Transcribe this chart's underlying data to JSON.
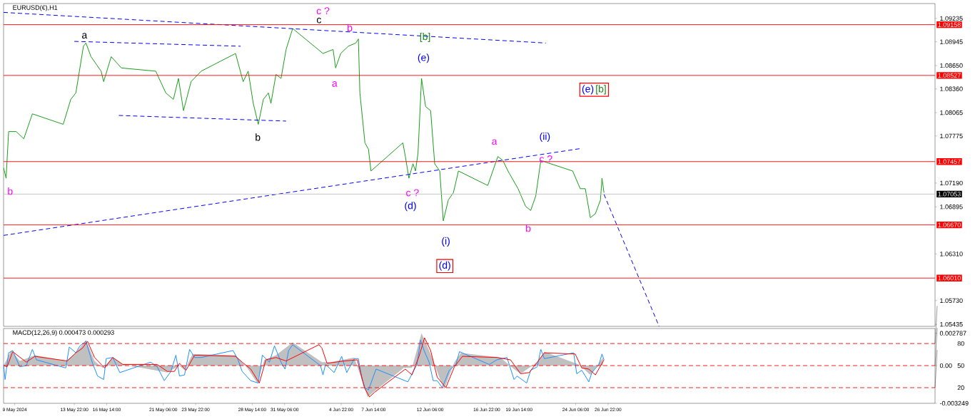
{
  "chart_data": [
    {
      "type": "line",
      "title": "EURUSD(€),H1",
      "xlim": [
        "2024-05-08T02:00",
        "2024-07-23T21:00"
      ],
      "ylim": [
        1.0541,
        1.0942
      ],
      "tick_labels": "y",
      "yticks": [
        1.09235,
        1.08945,
        {
          "value": 1.0865,
          "label": "1.08650"
        },
        {
          "value": 1.0836,
          "label": "1.08360"
        },
        1.08065,
        1.07775,
        {
          "value": 1.0719,
          "label": "1.07190"
        },
        1.06895,
        {
          "value": 1.0631,
          "label": "1.06310"
        },
        {
          "value": 1.0573,
          "label": "1.05730"
        },
        1.05435
      ],
      "series": [
        {
          "color": "#1a9e1a",
          "x": [
            "2024-05-08T02:00",
            "2024-05-08T07:00",
            "2024-05-08T12:00",
            "2024-05-09T03:00",
            "2024-05-09T18:00",
            "2024-05-10T11:00",
            "2024-05-13T00:00",
            "2024-05-13T15:00",
            "2024-05-14T01:00",
            "2024-05-14T16:00",
            "2024-05-14T21:00",
            "2024-05-15T07:00",
            "2024-05-16T03:00",
            "2024-05-16T08:00",
            "2024-05-16T23:00",
            "2024-05-17T19:00",
            "2024-05-20T15:00",
            "2024-05-21T11:00",
            "2024-05-22T02:00",
            "2024-05-22T12:00",
            "2024-05-22T22:00",
            "2024-05-23T13:00",
            "2024-05-24T09:00",
            "2024-05-27T05:00",
            "2024-05-27T20:00",
            "2024-05-28T06:00",
            "2024-05-28T16:00",
            "2024-05-29T02:00",
            "2024-05-29T12:00",
            "2024-05-29T22:00",
            "2024-05-30T03:00",
            "2024-05-30T13:00",
            "2024-05-30T23:00",
            "2024-05-31T09:00",
            "2024-05-31T22:00",
            "2024-06-03T10:00",
            "2024-06-04T06:00",
            "2024-06-04T11:00",
            "2024-06-04T21:00",
            "2024-06-05T12:00",
            "2024-06-06T03:00",
            "2024-06-06T08:00",
            "2024-06-06T11:00",
            "2024-06-06T16:00",
            "2024-06-06T21:00",
            "2024-06-07T04:00",
            "2024-06-07T09:00",
            "2024-06-10T00:00",
            "2024-06-10T05:00",
            "2024-06-10T12:00",
            "2024-06-10T20:00",
            "2024-06-11T01:00",
            "2024-06-11T06:00",
            "2024-06-11T13:00",
            "2024-06-11T21:00",
            "2024-06-12T07:00",
            "2024-06-12T15:00",
            "2024-06-13T01:00",
            "2024-06-13T08:00",
            "2024-06-13T18:00",
            "2024-06-14T04:00",
            "2024-06-14T14:00",
            "2024-06-17T00:00",
            "2024-06-17T10:00",
            "2024-06-17T20:00",
            "2024-06-18T06:00",
            "2024-06-18T16:00",
            "2024-06-19T12:00",
            "2024-06-20T03:00",
            "2024-06-20T13:00",
            "2024-06-20T23:00",
            "2024-06-21T09:00",
            "2024-06-24T00:00",
            "2024-06-24T15:00",
            "2024-06-25T01:00",
            "2024-06-25T11:00",
            "2024-06-25T21:00",
            "2024-06-26T07:00",
            "2024-06-26T10:00",
            "2024-06-26T14:00"
          ],
          "values": [
            1.0738,
            1.0725,
            1.0783,
            1.0783,
            1.0774,
            1.0805,
            1.0792,
            1.0823,
            1.0831,
            1.0889,
            1.0893,
            1.0876,
            1.0858,
            1.0845,
            1.0876,
            1.0862,
            1.0858,
            1.0831,
            1.0823,
            1.0849,
            1.0809,
            1.0845,
            1.0858,
            1.088,
            1.0845,
            1.0858,
            1.0818,
            1.0792,
            1.0823,
            1.0831,
            1.0818,
            1.0854,
            1.0849,
            1.0885,
            1.0911,
            1.088,
            1.0885,
            1.0862,
            1.088,
            1.0889,
            1.0893,
            1.0898,
            1.0831,
            1.08,
            1.0769,
            1.0761,
            1.0734,
            1.0769,
            1.0752,
            1.0725,
            1.0743,
            1.0734,
            1.0756,
            1.0849,
            1.0814,
            1.0809,
            1.0743,
            1.0734,
            1.0672,
            1.0698,
            1.0707,
            1.0734,
            1.0716,
            1.0734,
            1.0752,
            1.0747,
            1.0734,
            1.0712,
            1.069,
            1.0685,
            1.0703,
            1.0747,
            1.0734,
            1.0712,
            1.0712,
            1.0676,
            1.0681,
            1.0698,
            1.0725,
            1.0707
          ]
        },
        {
          "color": "#0000ff",
          "line_style": "dashed",
          "x": [
            "2024-05-08T02:00",
            "2024-06-21T19:00"
          ],
          "values": [
            1.0931,
            1.0893
          ]
        },
        {
          "color": "#0000ff",
          "line_style": "dashed",
          "x": [
            "2024-05-13T22:00",
            "2024-05-27T15:00"
          ],
          "values": [
            1.0895,
            1.0889
          ]
        },
        {
          "color": "#0000ff",
          "line_style": "dashed",
          "x": [
            "2024-05-17T14:00",
            "2024-05-31T09:00"
          ],
          "values": [
            1.0803,
            1.0796
          ]
        },
        {
          "color": "#0000ff",
          "line_style": "dashed",
          "x": [
            "2024-05-08T02:00",
            "2024-06-24T17:00"
          ],
          "values": [
            1.0654,
            1.0762
          ]
        },
        {
          "color": "#0000ff",
          "line_style": "dashed",
          "x": [
            "2024-06-26T14:00",
            "2024-07-01T03:00"
          ],
          "values": [
            1.0705,
            1.0541
          ]
        }
      ],
      "ref_lines": [
        {
          "axis": "y",
          "value": 1.09158,
          "label": "1.09158",
          "color": "#ff0000"
        },
        {
          "axis": "y",
          "value": 1.08527,
          "label": "1.08527",
          "color": "#ff0000"
        },
        {
          "axis": "y",
          "value": 1.07457,
          "label": "1.07457",
          "color": "#ff0000"
        },
        {
          "axis": "y",
          "value": 1.07053,
          "label": "1.07053",
          "color": "#c0c0c0"
        },
        {
          "axis": "y",
          "value": 1.0667,
          "label": "1.06670",
          "color": "#ff0000"
        },
        {
          "axis": "y",
          "value": 1.0601,
          "label": "1.06010",
          "color": "#ff0000"
        }
      ],
      "annotations": [
        "b",
        "a",
        "b",
        "c",
        "c ?",
        "b",
        "a",
        "[b]",
        "(e)",
        "(e)",
        "[b]",
        "a",
        "(ii)",
        "c ?",
        "c ?",
        "(d)",
        "(i)",
        "(d)",
        "b"
      ]
    },
    {
      "type": "line",
      "title": "MACD(12,26,9) 0.000473 0.000293",
      "xlim": [
        "2024-05-08T02:00",
        "2024-07-23T21:00"
      ],
      "ylim": [
        -0.00325,
        0.0032
      ],
      "y2lim": [
        -1.3,
        100.5
      ],
      "y2ticks": [
        20,
        50,
        80
      ],
      "xticks": [
        {
          "value": "2024-05-09T00:00",
          "label": "9 May 2024"
        },
        {
          "value": "2024-05-13T22:00",
          "label": "13 May 22:00"
        },
        {
          "value": "2024-05-16T14:00",
          "label": "16 May 14:00"
        },
        {
          "value": "2024-05-21T06:00",
          "label": "21 May 06:00"
        },
        {
          "value": "2024-05-23T22:00",
          "label": "23 May 22:00"
        },
        {
          "value": "2024-05-28T14:00",
          "label": "28 May 14:00"
        },
        {
          "value": "2024-05-31T06:00",
          "label": "31 May 06:00"
        },
        {
          "value": "2024-06-04T22:00",
          "label": "4 Jun 22:00"
        },
        {
          "value": "2024-06-07T14:00",
          "label": "7 Jun 14:00"
        },
        {
          "value": "2024-06-12T06:00",
          "label": "12 Jun 06:00"
        },
        {
          "value": "2024-06-16T22:00",
          "label": "16 Jun 22:00"
        },
        {
          "value": "2024-06-19T14:00",
          "label": "19 Jun 14:00"
        },
        {
          "value": "2024-06-24T06:00",
          "label": "24 Jun 06:00"
        },
        {
          "value": "2024-06-26T22:00",
          "label": "26 Jun 22:00"
        }
      ],
      "yticks": [
        0.002787,
        {
          "value": 0,
          "label": "0.00"
        },
        -0.003249
      ],
      "series": [
        {
          "type": "area",
          "color": "#c0c0c0",
          "x": [
            "2024-05-08T02:00",
            "2024-05-08T17:00",
            "2024-05-09T10:00",
            "2024-05-10T16:00",
            "2024-05-13T05:00",
            "2024-05-14T01:00",
            "2024-05-14T21:00",
            "2024-05-15T14:00",
            "2024-05-16T06:00",
            "2024-05-17T02:00",
            "2024-05-17T22:00",
            "2024-05-21T14:00",
            "2024-05-22T14:00",
            "2024-05-23T00:00",
            "2024-05-23T16:00",
            "2024-05-27T05:00",
            "2024-05-28T04:00",
            "2024-05-29T00:00",
            "2024-05-29T14:00",
            "2024-05-30T13:00",
            "2024-05-31T22:00",
            "2024-06-03T08:00",
            "2024-06-04T01:00",
            "2024-06-06T00:00",
            "2024-06-07T02:00",
            "2024-06-10T02:00",
            "2024-06-10T18:00",
            "2024-06-11T13:00",
            "2024-06-12T10:00",
            "2024-06-13T00:00",
            "2024-06-13T10:00",
            "2024-06-14T06:00",
            "2024-06-14T19:00",
            "2024-06-18T01:00",
            "2024-06-19T04:00",
            "2024-06-19T17:00",
            "2024-06-21T02:00",
            "2024-06-21T16:00",
            "2024-06-24T12:00",
            "2024-06-25T11:00",
            "2024-06-26T12:00"
          ],
          "values": [
            0,
            0.0013,
            0.0004,
            0.0009,
            0.0004,
            0.0011,
            0.0022,
            0.0004,
            -0.0002,
            0.0007,
            0.0001,
            -0.0006,
            0,
            -0.0004,
            0.001,
            0.0009,
            -0.0002,
            -0.0015,
            0.0005,
            0.0009,
            0.002,
            0.0003,
            0.0003,
            0.0007,
            -0.0027,
            -0.0002,
            -0.0002,
            0.0028,
            0.0007,
            -0.001,
            -0.002,
            0.0003,
            0.0011,
            0.0007,
            -0.0003,
            -0.0007,
            0.0003,
            0.0012,
            0.0001,
            -0.0008,
            0.0007
          ]
        },
        {
          "color": "#1e90ff",
          "x": [
            "2024-05-08T02:00",
            "2024-05-08T05:00",
            "2024-05-08T12:00",
            "2024-05-08T20:00",
            "2024-05-09T10:00",
            "2024-05-09T23:00",
            "2024-05-10T11:00",
            "2024-05-10T19:00",
            "2024-05-13T05:00",
            "2024-05-13T12:00",
            "2024-05-14T01:00",
            "2024-05-14T09:00",
            "2024-05-14T21:00",
            "2024-05-15T10:00",
            "2024-05-15T20:00",
            "2024-05-16T08:00",
            "2024-05-16T13:00",
            "2024-05-17T02:00",
            "2024-05-17T16:00",
            "2024-05-20T05:00",
            "2024-05-20T18:00",
            "2024-05-21T08:00",
            "2024-05-21T21:00",
            "2024-05-22T07:00",
            "2024-05-22T14:00",
            "2024-05-23T00:00",
            "2024-05-23T10:00",
            "2024-05-23T20:00",
            "2024-05-24T09:00",
            "2024-05-27T00:00",
            "2024-05-27T10:00",
            "2024-05-27T18:00",
            "2024-05-28T11:00",
            "2024-05-29T02:00",
            "2024-05-29T10:00",
            "2024-05-30T00:00",
            "2024-05-30T10:00",
            "2024-05-30T23:00",
            "2024-05-31T07:00",
            "2024-05-31T14:00",
            "2024-05-31T22:00",
            "2024-06-03T05:00",
            "2024-06-03T10:00",
            "2024-06-03T15:00",
            "2024-06-04T08:00",
            "2024-06-04T23:00",
            "2024-06-05T09:00",
            "2024-06-06T00:00",
            "2024-06-06T08:00",
            "2024-06-06T15:00",
            "2024-06-06T21:00",
            "2024-06-07T04:00",
            "2024-06-07T19:00",
            "2024-06-10T10:00",
            "2024-06-10T22:00",
            "2024-06-11T04:00",
            "2024-06-11T11:00",
            "2024-06-11T18:00",
            "2024-06-12T04:00",
            "2024-06-12T12:00",
            "2024-06-12T20:00",
            "2024-06-13T06:00",
            "2024-06-13T20:00",
            "2024-06-14T09:00",
            "2024-06-14T16:00",
            "2024-06-17T03:00",
            "2024-06-17T18:00",
            "2024-06-18T14:00",
            "2024-06-19T04:00",
            "2024-06-19T10:00",
            "2024-06-20T05:00",
            "2024-06-20T13:00",
            "2024-06-21T02:00",
            "2024-06-21T09:00",
            "2024-06-21T16:00",
            "2024-06-24T02:00",
            "2024-06-24T08:00",
            "2024-06-24T18:00",
            "2024-06-25T08:00",
            "2024-06-25T14:00",
            "2024-06-26T04:00",
            "2024-06-26T10:00",
            "2024-06-26T14:00"
          ],
          "values": [
            0.0001,
            -0.0012,
            0.0011,
            0.0013,
            -0.0001,
            0,
            0.0014,
            0.0005,
            -0.0002,
            0.0016,
            0.0011,
            0.0017,
            0.0021,
            0.0002,
            -0.0009,
            -0.0012,
            0.0006,
            0.0007,
            -0.0006,
            0.0003,
            -0.0001,
            -0.0013,
            -0.0005,
            0.0009,
            -0.0009,
            -0.0008,
            0.0014,
            0.0007,
            0.0007,
            0.0013,
            0.0005,
            -0.0005,
            -0.0013,
            -0.0015,
            0.0009,
            0.0003,
            0.0017,
            0.0003,
            -0.0003,
            0.0013,
            0.0018,
            0,
            -0.0008,
            0.0001,
            -0.0006,
            0.0008,
            -0.0006,
            0.0006,
            0.0006,
            -0.0011,
            -0.0019,
            -0.0021,
            -0.0003,
            -0.0014,
            -0.0004,
            0.0001,
            0.0022,
            0.0013,
            0.0003,
            -0.0013,
            -0.0013,
            -0.0019,
            -0.0004,
            0.0001,
            0.0012,
            0.0001,
            0.0005,
            0.0007,
            -0.0012,
            -0.0009,
            -0.0015,
            -0.0004,
            -0.0001,
            0.0014,
            0.0006,
            0.0011,
            -0.0007,
            -0.0004,
            -0.0014,
            -0.0006,
            0.0001,
            0.001,
            0.0005
          ]
        },
        {
          "color": "#ff0000",
          "x": [
            "2024-05-08T02:00",
            "2024-05-08T09:00",
            "2024-05-08T20:00",
            "2024-05-09T23:00",
            "2024-05-10T16:00",
            "2024-05-13T08:00",
            "2024-05-14T01:00",
            "2024-05-14T14:00",
            "2024-05-15T00:00",
            "2024-05-15T14:00",
            "2024-05-16T10:00",
            "2024-05-17T02:00",
            "2024-05-17T22:00",
            "2024-05-20T18:00",
            "2024-05-21T14:00",
            "2024-05-22T04:00",
            "2024-05-22T14:00",
            "2024-05-23T03:00",
            "2024-05-23T20:00",
            "2024-05-27T05:00",
            "2024-05-27T18:00",
            "2024-05-28T11:00",
            "2024-05-29T04:00",
            "2024-05-29T17:00",
            "2024-05-30T13:00",
            "2024-05-31T09:00",
            "2024-06-03T02:00",
            "2024-06-03T08:00",
            "2024-06-03T18:00",
            "2024-06-05T04:00",
            "2024-06-06T06:00",
            "2024-06-06T20:00",
            "2024-06-07T06:00",
            "2024-06-07T16:00",
            "2024-06-10T05:00",
            "2024-06-10T18:00",
            "2024-06-11T08:00",
            "2024-06-11T19:00",
            "2024-06-12T07:00",
            "2024-06-12T20:00",
            "2024-06-13T13:00",
            "2024-06-14T06:00",
            "2024-06-14T22:00",
            "2024-06-17T18:00",
            "2024-06-18T21:00",
            "2024-06-19T17:00",
            "2024-06-20T10:00",
            "2024-06-21T02:00",
            "2024-06-21T16:00",
            "2024-06-24T05:00",
            "2024-06-24T18:00",
            "2024-06-25T08:00",
            "2024-06-25T21:00",
            "2024-06-26T14:00"
          ],
          "values": [
            0,
            -0.0001,
            0.0012,
            0.0003,
            0.0008,
            0.0004,
            0.0011,
            0.0015,
            0.0021,
            0.0007,
            -0.0002,
            0.0007,
            0.0001,
            0.0001,
            -0.0005,
            -0.0005,
            0.0002,
            -0.0004,
            0.0009,
            0.0008,
            0.0003,
            -0.0003,
            -0.0015,
            0.0005,
            0.0007,
            0.0004,
            0.0018,
            0.0015,
            0.0002,
            0.0004,
            0.0005,
            -0.0019,
            -0.0027,
            -0.0023,
            -0.0003,
            -0.0008,
            0.0008,
            0.0024,
            0.0013,
            -0.001,
            -0.0019,
            -0.0001,
            0.0008,
            0.0007,
            0.0005,
            -0.0007,
            -0.0006,
            0.0003,
            0.0011,
            0.001,
            -0.0002,
            -0.0003,
            -0.0008,
            0.0005
          ]
        }
      ],
      "ref_lines": [
        {
          "axis": "y2",
          "value": 80,
          "color": "#ff0000",
          "line_style": "dashed"
        },
        {
          "axis": "y2",
          "value": 50,
          "color": "#ff0000",
          "line_style": "dashed"
        },
        {
          "axis": "y2",
          "value": 20,
          "color": "#ff0000",
          "line_style": "dashed"
        }
      ]
    }
  ]
}
